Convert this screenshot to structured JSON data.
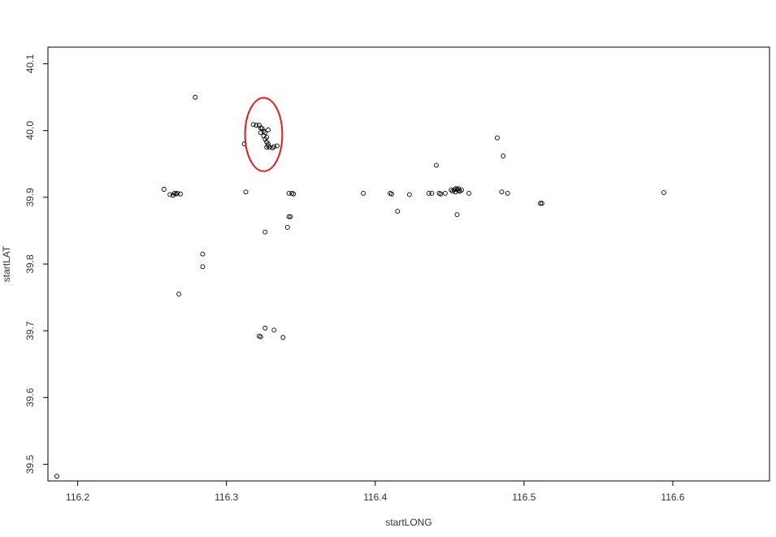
{
  "chart_data": {
    "type": "scatter",
    "title": "",
    "xlabel": "startLONG",
    "ylabel": "startLAT",
    "xlim": [
      116.18,
      116.665
    ],
    "ylim": [
      39.475,
      40.125
    ],
    "x_ticks": [
      116.2,
      116.3,
      116.4,
      116.5,
      116.6
    ],
    "x_tick_labels": [
      "116.2",
      "116.3",
      "116.4",
      "116.5",
      "116.6"
    ],
    "y_ticks": [
      39.5,
      39.6,
      39.7,
      39.8,
      39.9,
      40.0,
      40.1
    ],
    "y_tick_labels": [
      "39.5",
      "39.6",
      "39.7",
      "39.8",
      "39.9",
      "40.0",
      "40.1"
    ],
    "grid": false,
    "marker": "open-circle",
    "marker_color": "#000000",
    "highlight": {
      "shape": "circle",
      "color": "#e31a1c",
      "center": [
        116.325,
        39.994
      ],
      "radius_x": 0.0125,
      "radius_y": 0.055
    },
    "series": [
      {
        "points": [
          [
            116.186,
            39.482
          ],
          [
            116.258,
            39.912
          ],
          [
            116.262,
            39.904
          ],
          [
            116.264,
            39.903
          ],
          [
            116.265,
            39.906
          ],
          [
            116.266,
            39.905
          ],
          [
            116.267,
            39.906
          ],
          [
            116.269,
            39.905
          ],
          [
            116.268,
            39.755
          ],
          [
            116.279,
            40.05
          ],
          [
            116.284,
            39.815
          ],
          [
            116.284,
            39.796
          ],
          [
            116.312,
            39.98
          ],
          [
            116.313,
            39.908
          ],
          [
            116.318,
            40.009
          ],
          [
            116.32,
            40.008
          ],
          [
            116.322,
            40.008
          ],
          [
            116.323,
            40.004
          ],
          [
            116.324,
            40.003
          ],
          [
            116.323,
            39.997
          ],
          [
            116.325,
            39.999
          ],
          [
            116.326,
            39.997
          ],
          [
            116.325,
            39.992
          ],
          [
            116.327,
            39.99
          ],
          [
            116.326,
            39.987
          ],
          [
            116.327,
            39.983
          ],
          [
            116.328,
            39.98
          ],
          [
            116.328,
            39.977
          ],
          [
            116.327,
            39.975
          ],
          [
            116.329,
            39.975
          ],
          [
            116.331,
            39.974
          ],
          [
            116.332,
            39.976
          ],
          [
            116.334,
            39.977
          ],
          [
            116.328,
            40.001
          ],
          [
            116.326,
            39.848
          ],
          [
            116.322,
            39.692
          ],
          [
            116.323,
            39.691
          ],
          [
            116.326,
            39.704
          ],
          [
            116.332,
            39.701
          ],
          [
            116.338,
            39.69
          ],
          [
            116.341,
            39.855
          ],
          [
            116.342,
            39.871
          ],
          [
            116.343,
            39.871
          ],
          [
            116.342,
            39.906
          ],
          [
            116.344,
            39.906
          ],
          [
            116.345,
            39.905
          ],
          [
            116.392,
            39.906
          ],
          [
            116.41,
            39.906
          ],
          [
            116.411,
            39.905
          ],
          [
            116.415,
            39.879
          ],
          [
            116.423,
            39.904
          ],
          [
            116.436,
            39.906
          ],
          [
            116.438,
            39.906
          ],
          [
            116.441,
            39.948
          ],
          [
            116.443,
            39.906
          ],
          [
            116.444,
            39.905
          ],
          [
            116.447,
            39.906
          ],
          [
            116.451,
            39.911
          ],
          [
            116.452,
            39.909
          ],
          [
            116.453,
            39.911
          ],
          [
            116.454,
            39.908
          ],
          [
            116.455,
            39.912
          ],
          [
            116.456,
            39.91
          ],
          [
            116.457,
            39.909
          ],
          [
            116.458,
            39.911
          ],
          [
            116.454,
            39.913
          ],
          [
            116.456,
            39.913
          ],
          [
            116.455,
            39.874
          ],
          [
            116.463,
            39.906
          ],
          [
            116.482,
            39.989
          ],
          [
            116.485,
            39.908
          ],
          [
            116.486,
            39.962
          ],
          [
            116.489,
            39.906
          ],
          [
            116.511,
            39.891
          ],
          [
            116.512,
            39.891
          ],
          [
            116.594,
            39.907
          ]
        ]
      }
    ]
  }
}
